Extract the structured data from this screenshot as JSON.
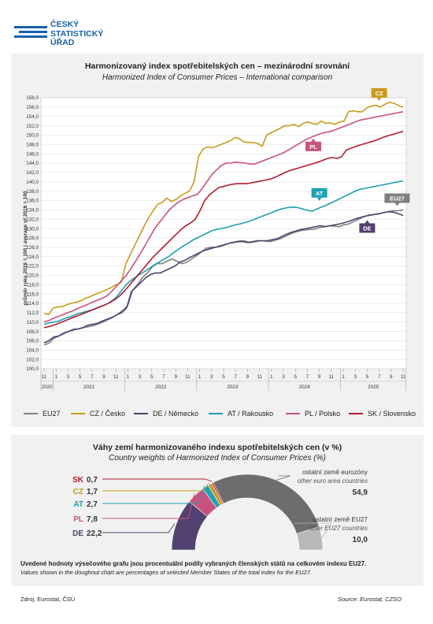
{
  "logo": {
    "lines": [
      "ČESKÝ",
      "STATISTICKÝ",
      "ÚŘAD"
    ],
    "color": "#1560a8"
  },
  "chart_data": [
    {
      "type": "line",
      "title": "Harmonizovaný index spotřebitelských cen – mezinárodní srovnání",
      "subtitle": "Harmonized Index of Consumer Prices – International comparison",
      "ylabel": "průměr roku 2016 = 100 | average of 2016 = 100",
      "ylim": [
        100,
        158
      ],
      "y_ticks": [
        "100,0",
        "102,0",
        "104,0",
        "106,0",
        "108,0",
        "110,0",
        "112,0",
        "114,0",
        "116,0",
        "118,0",
        "120,0",
        "122,0",
        "124,0",
        "126,0",
        "128,0",
        "130,0",
        "132,0",
        "134,0",
        "136,0",
        "138,0",
        "140,0",
        "142,0",
        "144,0",
        "146,0",
        "148,0",
        "150,0",
        "152,0",
        "154,0",
        "156,0",
        "158,0"
      ],
      "x_month_ticks": [
        "11",
        "1",
        "3",
        "5",
        "7",
        "9",
        "11",
        "1",
        "3",
        "5",
        "7",
        "9",
        "11",
        "1",
        "3",
        "5",
        "7",
        "9",
        "11",
        "1",
        "3",
        "5",
        "7",
        "9",
        "11",
        "1",
        "3",
        "5",
        "7",
        "9",
        "11"
      ],
      "x_year_labels": [
        "2020",
        "2021",
        "2022",
        "2023",
        "2024",
        "2025"
      ],
      "grid": true,
      "series": [
        {
          "name": "EU27",
          "label": "EU27",
          "color": "#808080",
          "values": [
            105.0,
            105.5,
            106.5,
            107.0,
            107.5,
            108.0,
            108.5,
            108.5,
            108.8,
            109.0,
            109.2,
            109.6,
            110.0,
            110.5,
            111.0,
            111.7,
            112.5,
            113.5,
            116.8,
            118.0,
            119.5,
            120.5,
            121.8,
            122.5,
            122.5,
            123.0,
            123.5,
            123.0,
            122.5,
            122.8,
            123.5,
            124.2,
            125.0,
            125.8,
            126.0,
            126.0,
            126.2,
            126.6,
            127.0,
            127.2,
            127.4,
            127.3,
            127.0,
            127.2,
            127.4,
            127.3,
            127.2,
            127.5,
            127.8,
            128.3,
            128.8,
            129.2,
            129.5,
            129.7,
            129.8,
            129.9,
            130.2,
            130.4,
            130.6,
            130.5,
            130.4,
            130.8,
            131.0,
            131.5,
            132.0,
            132.5,
            132.9,
            133.0,
            133.1,
            133.4,
            133.6,
            133.8,
            133.8,
            134.0
          ]
        },
        {
          "name": "CZ / Česko",
          "label": "CZ",
          "color": "#c99a1c",
          "values": [
            111.8,
            111.6,
            113.0,
            113.2,
            113.3,
            113.7,
            114.0,
            114.2,
            114.5,
            115.0,
            115.4,
            115.8,
            116.2,
            116.6,
            117.0,
            117.5,
            118.0,
            118.5,
            122.5,
            124.5,
            126.5,
            128.5,
            130.5,
            132.3,
            133.8,
            135.2,
            135.6,
            136.5,
            135.8,
            136.2,
            137.0,
            137.5,
            138.0,
            140.0,
            145.5,
            147.0,
            147.5,
            147.3,
            147.6,
            148.0,
            148.4,
            148.8,
            149.5,
            149.2,
            148.5,
            148.4,
            148.4,
            148.2,
            147.6,
            150.0,
            150.5,
            151.0,
            151.5,
            152.0,
            152.0,
            152.3,
            151.8,
            152.5,
            152.8,
            152.5,
            152.3,
            153.0,
            152.5,
            152.6,
            152.3,
            152.8,
            153.0,
            155.0,
            155.2,
            155.0,
            155.0,
            155.8,
            156.2,
            156.4,
            156.0,
            156.6,
            157.0,
            156.8,
            156.3,
            156.0
          ]
        },
        {
          "name": "DE / Německo",
          "label": "DE",
          "color": "#524070",
          "values": [
            105.5,
            106.0,
            106.8,
            107.0,
            107.6,
            108.0,
            108.3,
            108.5,
            108.8,
            109.3,
            109.5,
            109.7,
            110.2,
            110.6,
            111.0,
            111.5,
            112.0,
            113.0,
            116.5,
            117.5,
            118.5,
            119.5,
            120.2,
            120.5,
            120.5,
            121.0,
            121.5,
            122.0,
            122.8,
            123.2,
            123.8,
            124.3,
            124.8,
            125.3,
            125.6,
            125.9,
            126.2,
            126.5,
            126.8,
            127.0,
            127.2,
            127.2,
            127.0,
            127.2,
            127.4,
            127.4,
            127.4,
            127.6,
            127.8,
            128.3,
            128.8,
            129.2,
            129.5,
            129.8,
            130.0,
            130.2,
            130.4,
            130.6,
            130.4,
            130.6,
            130.8,
            131.0,
            131.3,
            131.6,
            132.0,
            132.3,
            132.6,
            132.8,
            133.0,
            133.2,
            133.4,
            133.6,
            133.5,
            133.2,
            132.8
          ]
        },
        {
          "name": "AT / Rakousko",
          "label": "AT",
          "color": "#1fa0b4",
          "values": [
            109.5,
            109.8,
            110.0,
            110.2,
            110.6,
            111.0,
            111.3,
            111.8,
            112.0,
            112.3,
            112.6,
            113.0,
            113.4,
            113.8,
            114.4,
            115.2,
            116.5,
            117.8,
            118.8,
            119.5,
            120.2,
            120.8,
            121.5,
            122.2,
            122.8,
            123.4,
            124.0,
            124.8,
            125.5,
            126.2,
            126.8,
            127.5,
            128.0,
            128.5,
            129.0,
            129.5,
            129.8,
            130.0,
            130.2,
            130.5,
            130.8,
            131.0,
            131.3,
            131.6,
            132.0,
            132.4,
            132.8,
            133.2,
            133.6,
            134.0,
            134.3,
            134.5,
            134.6,
            134.5,
            134.2,
            133.9,
            133.7,
            134.2,
            134.6,
            135.0,
            135.5,
            136.0,
            136.5,
            137.0,
            137.5,
            138.0,
            138.4,
            138.6,
            138.8,
            139.0,
            139.2,
            139.4,
            139.6,
            139.8,
            140.0,
            140.2
          ]
        },
        {
          "name": "PL / Polsko",
          "label": "PL",
          "color": "#c9527c",
          "values": [
            110.0,
            110.3,
            110.8,
            111.2,
            111.6,
            112.0,
            112.4,
            112.9,
            113.3,
            113.7,
            114.2,
            114.6,
            115.0,
            115.5,
            116.4,
            117.5,
            118.7,
            119.8,
            121.2,
            122.8,
            124.5,
            126.2,
            128.0,
            129.8,
            131.2,
            132.5,
            133.8,
            134.8,
            135.6,
            136.2,
            136.6,
            137.0,
            137.3,
            138.5,
            140.0,
            141.5,
            142.5,
            143.5,
            144.0,
            144.0,
            144.2,
            144.1,
            144.0,
            143.8,
            143.8,
            144.2,
            144.6,
            145.0,
            145.4,
            145.8,
            146.2,
            146.8,
            147.4,
            148.0,
            148.6,
            149.2,
            149.6,
            150.0,
            150.4,
            150.6,
            150.8,
            151.2,
            151.6,
            152.0,
            152.4,
            152.8,
            153.2,
            153.4,
            153.6,
            153.8,
            154.0,
            154.2,
            154.4,
            154.6,
            154.8,
            155.0
          ]
        },
        {
          "name": "SK / Slovensko",
          "label": "SK",
          "color": "#b21e2e",
          "values": [
            108.8,
            109.0,
            109.3,
            109.7,
            110.1,
            110.5,
            110.9,
            111.3,
            111.7,
            112.1,
            112.5,
            112.9,
            113.3,
            113.7,
            114.2,
            114.8,
            115.6,
            116.6,
            117.8,
            119.0,
            120.2,
            121.4,
            122.6,
            123.8,
            124.8,
            125.8,
            126.8,
            127.8,
            128.8,
            129.8,
            130.6,
            131.2,
            132.0,
            133.8,
            136.0,
            137.2,
            138.0,
            138.8,
            139.0,
            139.3,
            139.5,
            139.6,
            139.6,
            139.6,
            139.8,
            140.0,
            140.2,
            140.4,
            140.6,
            141.0,
            141.5,
            142.0,
            142.4,
            142.7,
            143.0,
            143.3,
            143.6,
            143.9,
            144.2,
            144.6,
            145.0,
            145.2,
            145.0,
            145.4,
            146.8,
            147.2,
            147.6,
            147.9,
            148.2,
            148.5,
            148.8,
            149.2,
            149.6,
            149.9,
            150.2,
            150.5,
            150.8
          ]
        }
      ]
    },
    {
      "type": "pie",
      "title": "Váhy zemí harmonizovaného indexu spotřebitelských cen (v %)",
      "subtitle": "Country weights of Harmonized Index of Consumer Prices (%)",
      "slices": [
        {
          "code": "DE",
          "value": 22.2,
          "label": "DE",
          "value_text": "22,2",
          "color": "#524070"
        },
        {
          "code": "PL",
          "value": 7.8,
          "label": "PL",
          "value_text": "7,8",
          "color": "#c9527c"
        },
        {
          "code": "AT",
          "value": 2.7,
          "label": "AT",
          "value_text": "2,7",
          "color": "#1fa0b4"
        },
        {
          "code": "CZ",
          "value": 1.7,
          "label": "CZ",
          "value_text": "1,7",
          "color": "#c99a1c"
        },
        {
          "code": "SK",
          "value": 0.7,
          "label": "SK",
          "value_text": "0,7",
          "color": "#b21e2e"
        },
        {
          "code": "EA",
          "value": 54.9,
          "label_cz": "ostatní země eurozóny",
          "label_en": "other euro area countries",
          "value_text": "54,9",
          "color": "#6d6d6d"
        },
        {
          "code": "EU",
          "value": 10.0,
          "label_cz": "ostatní země EU27",
          "label_en": "other EU27 countries",
          "value_text": "10,0",
          "color": "#b8b8b8"
        }
      ]
    }
  ],
  "legend": [
    {
      "label": "EU27",
      "color": "#808080"
    },
    {
      "label": "CZ / Česko",
      "color": "#c99a1c"
    },
    {
      "label": "DE / Německo",
      "color": "#524070"
    },
    {
      "label": "AT / Rakousko",
      "color": "#1fa0b4"
    },
    {
      "label": "PL / Polsko",
      "color": "#c9527c"
    },
    {
      "label": "SK / Slovensko",
      "color": "#b21e2e"
    }
  ],
  "doughnut_note": {
    "cz": "Uvedené hodnoty výsečového grafu jsou procentuální podíly vybraných členských států na celkovém indexu EU27.",
    "en": "Values shown in the doughnut chart are percentages of selected Member States of the total index for the EU27."
  },
  "footer": {
    "source_cz": "Zdroj: Eurostat, ČSÚ",
    "source_en": "Source: Eurostat, CZSO"
  }
}
